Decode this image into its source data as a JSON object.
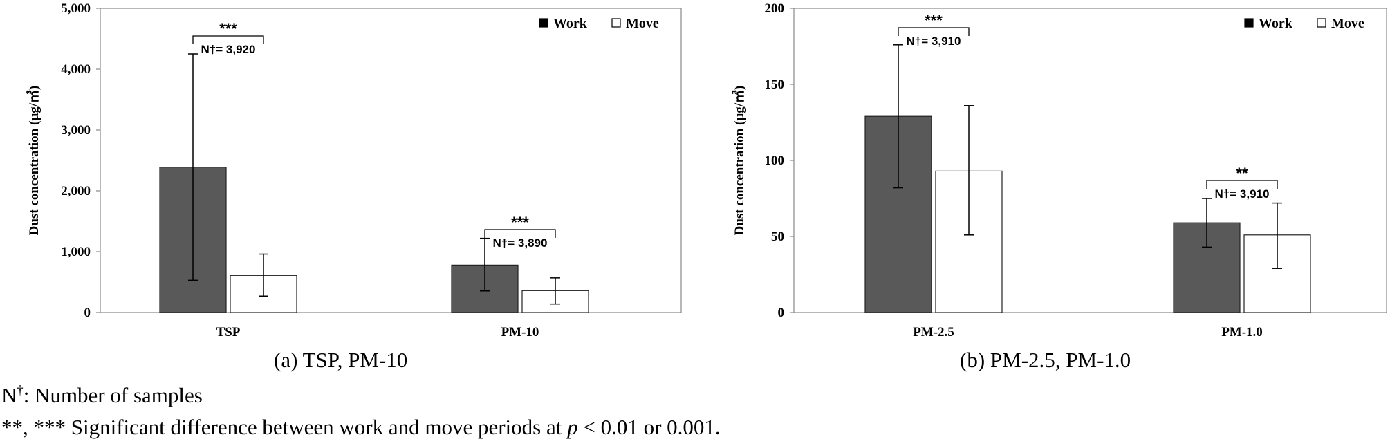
{
  "chart_data": [
    {
      "type": "bar",
      "categories": [
        "TSP",
        "PM-10"
      ],
      "ylabel": "Dust concentration (µg/㎥)",
      "ylim": [
        0,
        5000
      ],
      "yticks": [
        0,
        1000,
        2000,
        3000,
        4000,
        5000
      ],
      "ytick_labels": [
        "0",
        "1,000",
        "2,000",
        "3,000",
        "4,000",
        "5,000"
      ],
      "series": [
        {
          "name": "Work",
          "color": "#595959",
          "values": [
            2390,
            780
          ],
          "err_low": [
            530,
            355
          ],
          "err_high": [
            4250,
            1220
          ]
        },
        {
          "name": "Move",
          "color": "#ffffff",
          "values": [
            610,
            360
          ],
          "err_low": [
            270,
            140
          ],
          "err_high": [
            960,
            570
          ]
        }
      ],
      "annotations": [
        {
          "category": "TSP",
          "stars": "***",
          "label": "N†= 3,920"
        },
        {
          "category": "PM-10",
          "stars": "***",
          "label": "N†= 3,890"
        }
      ],
      "legend_position": "top-right",
      "grid": false
    },
    {
      "type": "bar",
      "categories": [
        "PM-2.5",
        "PM-1.0"
      ],
      "ylabel": "Dust concentration (µg/㎥)",
      "ylim": [
        0,
        200
      ],
      "yticks": [
        0,
        50,
        100,
        150,
        200
      ],
      "ytick_labels": [
        "0",
        "50",
        "100",
        "150",
        "200"
      ],
      "series": [
        {
          "name": "Work",
          "color": "#595959",
          "values": [
            129,
            59
          ],
          "err_low": [
            82,
            43
          ],
          "err_high": [
            176,
            75
          ]
        },
        {
          "name": "Move",
          "color": "#ffffff",
          "values": [
            93,
            51
          ],
          "err_low": [
            51,
            29
          ],
          "err_high": [
            136,
            72
          ]
        }
      ],
      "annotations": [
        {
          "category": "PM-2.5",
          "stars": "***",
          "label": "N†= 3,910"
        },
        {
          "category": "PM-1.0",
          "stars": "**",
          "label": "N†= 3,910"
        }
      ],
      "legend_position": "top-right",
      "grid": false
    }
  ],
  "captions": [
    "(a)  TSP,  PM-10",
    "(b)  PM-2.5,  PM-1.0"
  ],
  "notes": {
    "n_prefix": "N",
    "n_sup": "†",
    "n_text": ": Number of samples",
    "sig_text_before": "**, *** Significant difference between work and move periods at ",
    "sig_p": "p",
    "sig_text_after": " < 0.01 or 0.001."
  }
}
